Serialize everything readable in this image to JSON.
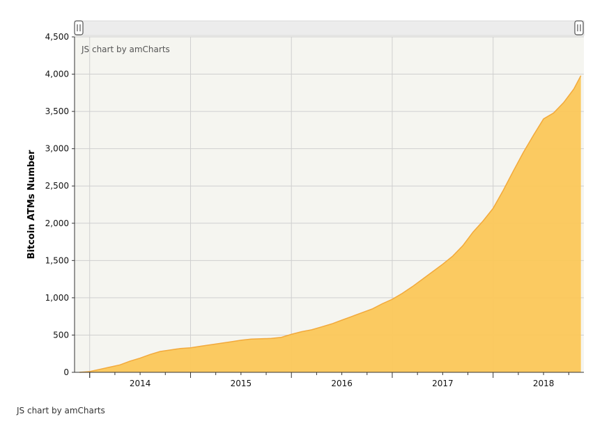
{
  "credits": {
    "inner": "JS chart by amCharts",
    "bottom": "JS chart by amCharts"
  },
  "colors": {
    "plot_background": "#f5f5f0",
    "area_fill": "#fbc758",
    "area_stroke": "#f2a93b",
    "grid": "#cfcfcf",
    "scrollbar": "#ececec"
  },
  "icons": {
    "scrollbar_left": "grip-handle-icon",
    "scrollbar_right": "grip-handle-icon"
  },
  "chart_data": {
    "type": "area",
    "ylabel": "Bitcoin ATMs Number",
    "xlabel": "",
    "title": "",
    "ylim": [
      0,
      4500
    ],
    "yticks": [
      0,
      500,
      1000,
      1500,
      2000,
      2500,
      3000,
      3500,
      4000,
      4500
    ],
    "ytick_labels": [
      "0",
      "500",
      "1,000",
      "1,500",
      "2,000",
      "2,500",
      "3,000",
      "3,500",
      "4,000",
      "4,500"
    ],
    "xlim": [
      2013.85,
      2018.9
    ],
    "year_ticks": [
      2014,
      2015,
      2016,
      2017,
      2018
    ],
    "x_labels": [
      "2014",
      "2015",
      "2016",
      "2017",
      "2018"
    ],
    "grid": true,
    "legend": "none",
    "series": [
      {
        "x": [
          2013.9,
          2014.0,
          2014.1,
          2014.2,
          2014.3,
          2014.4,
          2014.5,
          2014.6,
          2014.7,
          2014.8,
          2014.9,
          2015.0,
          2015.1,
          2015.2,
          2015.3,
          2015.4,
          2015.5,
          2015.6,
          2015.7,
          2015.8,
          2015.9,
          2016.0,
          2016.1,
          2016.2,
          2016.3,
          2016.4,
          2016.5,
          2016.6,
          2016.7,
          2016.8,
          2016.9,
          2017.0,
          2017.1,
          2017.2,
          2017.3,
          2017.4,
          2017.5,
          2017.6,
          2017.7,
          2017.8,
          2017.9,
          2018.0,
          2018.1,
          2018.2,
          2018.3,
          2018.4,
          2018.5,
          2018.6,
          2018.7,
          2018.8,
          2018.87
        ],
        "y": [
          0,
          10,
          40,
          70,
          100,
          150,
          190,
          240,
          280,
          300,
          320,
          330,
          350,
          370,
          390,
          410,
          430,
          445,
          450,
          455,
          470,
          510,
          545,
          570,
          610,
          650,
          700,
          750,
          800,
          850,
          920,
          980,
          1060,
          1150,
          1250,
          1350,
          1450,
          1560,
          1700,
          1880,
          2030,
          2200,
          2440,
          2700,
          2950,
          3180,
          3400,
          3480,
          3620,
          3800,
          3980
        ]
      }
    ]
  }
}
